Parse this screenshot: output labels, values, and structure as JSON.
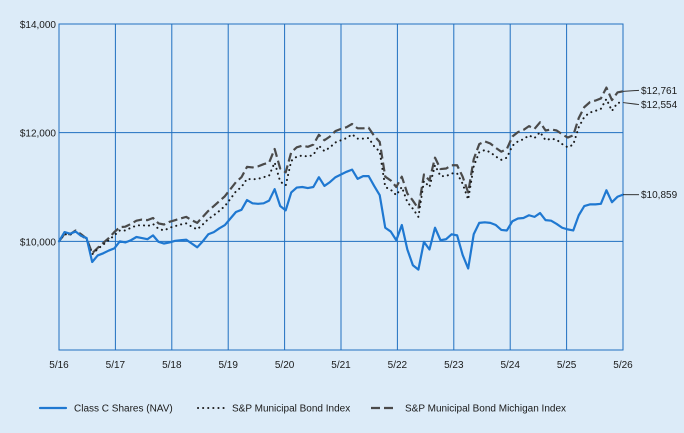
{
  "chart_data": {
    "type": "line",
    "title": "",
    "xlabel": "",
    "ylabel": "",
    "ylim": [
      8000,
      14000
    ],
    "x_ticks": [
      "5/16",
      "5/17",
      "5/18",
      "5/19",
      "5/20",
      "5/21",
      "5/22",
      "5/23",
      "5/24",
      "5/25",
      "5/26"
    ],
    "y_ticks": [
      {
        "value": 10000,
        "label": "$10,000"
      },
      {
        "value": 12000,
        "label": "$12,000"
      },
      {
        "value": 14000,
        "label": "$14,000"
      }
    ],
    "grid": true,
    "legend": "bottom",
    "colors": {
      "background": "#dcebf8",
      "grid": "#1f6fc0",
      "class_c": "#1f78d1",
      "muni": "#1a1a1a",
      "michigan": "#4a4a4a"
    },
    "series": [
      {
        "name": "Class C Shares (NAV)",
        "style": "solid",
        "end_label": "$10,859",
        "values": [
          10000,
          10170,
          10140,
          10180,
          10100,
          10060,
          9620,
          9740,
          9780,
          9830,
          9870,
          10000,
          9980,
          10020,
          10080,
          10060,
          10040,
          10110,
          9990,
          9960,
          9980,
          10010,
          10020,
          10030,
          9960,
          9890,
          10000,
          10130,
          10170,
          10240,
          10300,
          10420,
          10540,
          10580,
          10760,
          10700,
          10690,
          10700,
          10750,
          10960,
          10650,
          10570,
          10900,
          10990,
          11000,
          10980,
          11000,
          11180,
          11020,
          11090,
          11180,
          11230,
          11280,
          11320,
          11150,
          11200,
          11200,
          11020,
          10850,
          10250,
          10180,
          10020,
          10300,
          9850,
          9560,
          9480,
          9990,
          9850,
          10250,
          10020,
          10040,
          10130,
          10110,
          9750,
          9500,
          10130,
          10340,
          10350,
          10340,
          10300,
          10210,
          10200,
          10370,
          10420,
          10430,
          10480,
          10450,
          10520,
          10390,
          10380,
          10320,
          10250,
          10220,
          10200,
          10480,
          10650,
          10680,
          10680,
          10690,
          10940,
          10720,
          10820,
          10859
        ]
      },
      {
        "name": "S&P Municipal Bond Index",
        "style": "dotted",
        "end_label": "$12,554",
        "values": [
          10000,
          10130,
          10120,
          10180,
          10110,
          10030,
          9760,
          9860,
          9940,
          10020,
          10110,
          10200,
          10200,
          10250,
          10290,
          10300,
          10280,
          10320,
          10230,
          10200,
          10250,
          10280,
          10310,
          10330,
          10270,
          10220,
          10310,
          10410,
          10480,
          10560,
          10650,
          10780,
          10920,
          11000,
          11150,
          11140,
          11150,
          11180,
          11210,
          11450,
          11100,
          11030,
          11480,
          11560,
          11580,
          11560,
          11590,
          11760,
          11660,
          11730,
          11820,
          11860,
          11900,
          11970,
          11890,
          11890,
          11900,
          11750,
          11650,
          11000,
          10950,
          10850,
          11000,
          10720,
          10600,
          10450,
          11110,
          11000,
          11400,
          11200,
          11200,
          11250,
          11250,
          11060,
          10770,
          11380,
          11640,
          11680,
          11640,
          11560,
          11500,
          11540,
          11760,
          11840,
          11880,
          11950,
          11900,
          12010,
          11860,
          11890,
          11870,
          11790,
          11730,
          11780,
          12100,
          12290,
          12370,
          12400,
          12440,
          12620,
          12400,
          12550,
          12554
        ]
      },
      {
        "name": "S&P Municipal Bond Michigan Index",
        "style": "dashed",
        "end_label": "$12,761",
        "values": [
          10000,
          10140,
          10130,
          10200,
          10130,
          10050,
          9780,
          9880,
          9970,
          10060,
          10170,
          10260,
          10270,
          10320,
          10380,
          10400,
          10390,
          10430,
          10330,
          10310,
          10360,
          10390,
          10420,
          10450,
          10390,
          10340,
          10450,
          10560,
          10650,
          10740,
          10830,
          10960,
          11090,
          11180,
          11370,
          11360,
          11380,
          11420,
          11450,
          11700,
          11340,
          11270,
          11640,
          11730,
          11760,
          11740,
          11780,
          11960,
          11860,
          11930,
          12030,
          12070,
          12100,
          12160,
          12080,
          12080,
          12090,
          11940,
          11830,
          11190,
          11120,
          11000,
          11190,
          10880,
          10750,
          10600,
          11230,
          11120,
          11540,
          11330,
          11340,
          11400,
          11400,
          11190,
          10900,
          11510,
          11790,
          11840,
          11800,
          11720,
          11650,
          11700,
          11930,
          12010,
          12050,
          12120,
          12070,
          12190,
          12040,
          12060,
          12040,
          11970,
          11910,
          11950,
          12270,
          12470,
          12560,
          12590,
          12630,
          12830,
          12600,
          12740,
          12761
        ]
      }
    ]
  }
}
